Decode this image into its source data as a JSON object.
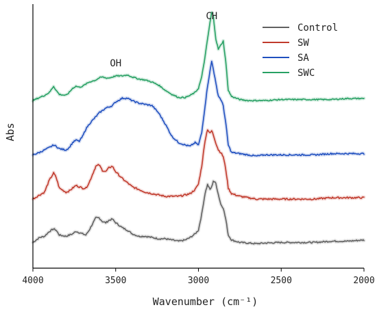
{
  "chart_data": {
    "type": "line",
    "title": "",
    "xlabel": "Wavenumber (cm⁻¹)",
    "ylabel": "Abs",
    "xlim": [
      4000,
      2000
    ],
    "x_reversed": true,
    "x_ticks": [
      "4000",
      "3500",
      "3000",
      "2500",
      "2000"
    ],
    "y_ticks_shown": false,
    "grid": false,
    "legend_position": "top-right",
    "annotations": [
      {
        "text": "OH",
        "x": 3500
      },
      {
        "text": "CH",
        "x": 2920
      }
    ],
    "x": [
      4000,
      3960,
      3930,
      3900,
      3875,
      3860,
      3840,
      3800,
      3780,
      3760,
      3740,
      3720,
      3700,
      3680,
      3660,
      3620,
      3600,
      3580,
      3560,
      3540,
      3520,
      3500,
      3460,
      3430,
      3400,
      3360,
      3320,
      3280,
      3240,
      3200,
      3160,
      3120,
      3080,
      3050,
      3020,
      3000,
      2980,
      2960,
      2945,
      2930,
      2920,
      2910,
      2895,
      2880,
      2865,
      2850,
      2835,
      2820,
      2800,
      2750,
      2700,
      2650,
      2600,
      2500,
      2400,
      2300,
      2200,
      2100,
      2000
    ],
    "series": [
      {
        "name": "Control",
        "color": "#606060",
        "values": [
          0.02,
          0.06,
          0.07,
          0.11,
          0.13,
          0.12,
          0.08,
          0.07,
          0.08,
          0.09,
          0.11,
          0.1,
          0.09,
          0.08,
          0.12,
          0.22,
          0.22,
          0.19,
          0.18,
          0.2,
          0.21,
          0.18,
          0.14,
          0.12,
          0.09,
          0.07,
          0.07,
          0.06,
          0.05,
          0.05,
          0.04,
          0.03,
          0.04,
          0.06,
          0.09,
          0.12,
          0.25,
          0.42,
          0.49,
          0.45,
          0.47,
          0.52,
          0.5,
          0.41,
          0.33,
          0.3,
          0.21,
          0.08,
          0.04,
          0.02,
          0.015,
          0.01,
          0.015,
          0.02,
          0.02,
          0.02,
          0.03,
          0.03,
          0.04
        ]
      },
      {
        "name": "SW",
        "color": "#c0392b",
        "values": [
          0.02,
          0.05,
          0.07,
          0.16,
          0.21,
          0.18,
          0.1,
          0.07,
          0.08,
          0.1,
          0.12,
          0.11,
          0.1,
          0.1,
          0.14,
          0.26,
          0.27,
          0.23,
          0.22,
          0.25,
          0.26,
          0.22,
          0.17,
          0.14,
          0.11,
          0.09,
          0.07,
          0.06,
          0.05,
          0.04,
          0.04,
          0.04,
          0.05,
          0.06,
          0.09,
          0.13,
          0.26,
          0.45,
          0.53,
          0.5,
          0.52,
          0.49,
          0.43,
          0.38,
          0.36,
          0.33,
          0.24,
          0.1,
          0.06,
          0.04,
          0.03,
          0.02,
          0.02,
          0.02,
          0.02,
          0.02,
          0.03,
          0.03,
          0.03
        ]
      },
      {
        "name": "SA",
        "color": "#1f4fbf",
        "values": [
          0.02,
          0.04,
          0.06,
          0.08,
          0.1,
          0.09,
          0.07,
          0.06,
          0.08,
          0.12,
          0.14,
          0.13,
          0.17,
          0.23,
          0.27,
          0.33,
          0.36,
          0.38,
          0.4,
          0.41,
          0.42,
          0.45,
          0.48,
          0.48,
          0.46,
          0.44,
          0.43,
          0.42,
          0.36,
          0.27,
          0.17,
          0.12,
          0.1,
          0.09,
          0.12,
          0.1,
          0.2,
          0.42,
          0.58,
          0.7,
          0.78,
          0.72,
          0.6,
          0.5,
          0.47,
          0.42,
          0.28,
          0.1,
          0.04,
          0.03,
          0.02,
          0.01,
          0.02,
          0.02,
          0.02,
          0.02,
          0.03,
          0.03,
          0.03
        ]
      },
      {
        "name": "SWC",
        "color": "#27a063",
        "values": [
          0.02,
          0.05,
          0.07,
          0.1,
          0.16,
          0.12,
          0.08,
          0.07,
          0.1,
          0.14,
          0.16,
          0.15,
          0.16,
          0.18,
          0.2,
          0.22,
          0.24,
          0.25,
          0.24,
          0.24,
          0.25,
          0.26,
          0.26,
          0.27,
          0.25,
          0.23,
          0.22,
          0.2,
          0.17,
          0.12,
          0.08,
          0.05,
          0.05,
          0.07,
          0.1,
          0.14,
          0.25,
          0.45,
          0.62,
          0.78,
          0.88,
          0.84,
          0.62,
          0.52,
          0.56,
          0.6,
          0.4,
          0.12,
          0.06,
          0.03,
          0.02,
          0.02,
          0.02,
          0.03,
          0.03,
          0.03,
          0.03,
          0.04,
          0.04
        ]
      }
    ]
  }
}
